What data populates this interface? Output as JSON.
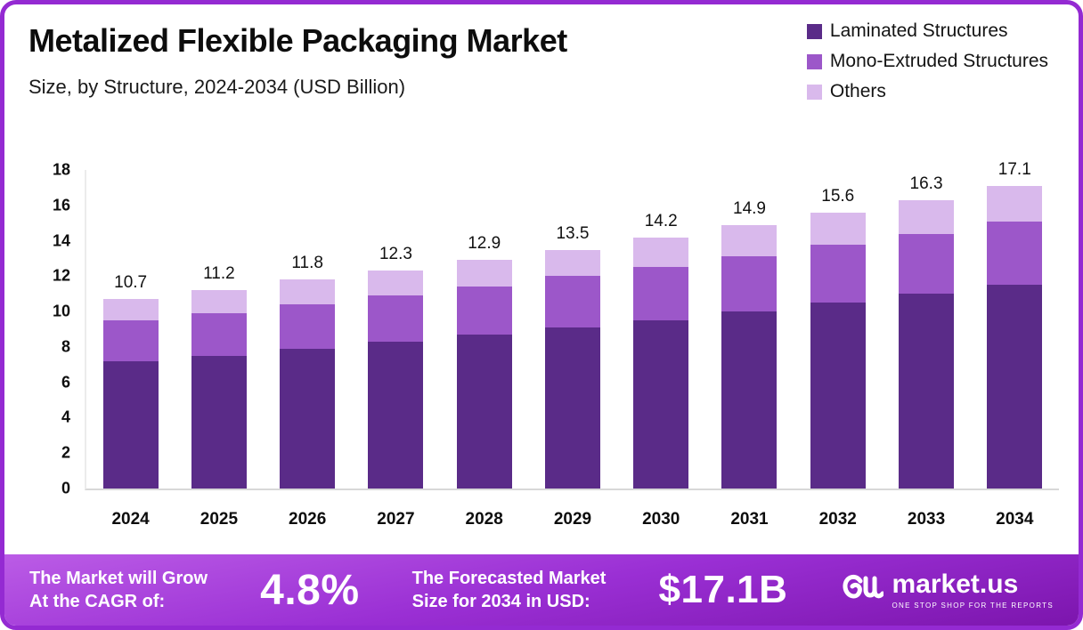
{
  "chart_data": {
    "type": "bar",
    "stacked": true,
    "title": "Metalized Flexible Packaging Market",
    "subtitle": "Size, by Structure, 2024-2034 (USD Billion)",
    "categories": [
      "2024",
      "2025",
      "2026",
      "2027",
      "2028",
      "2029",
      "2030",
      "2031",
      "2032",
      "2033",
      "2034"
    ],
    "series": [
      {
        "name": "Laminated Structures",
        "color": "#5a2b88",
        "values": [
          7.2,
          7.5,
          7.9,
          8.3,
          8.7,
          9.1,
          9.5,
          10.0,
          10.5,
          11.0,
          11.5
        ]
      },
      {
        "name": "Mono-Extruded Structures",
        "color": "#9c57c9",
        "values": [
          2.3,
          2.4,
          2.5,
          2.6,
          2.7,
          2.9,
          3.0,
          3.1,
          3.3,
          3.4,
          3.6
        ]
      },
      {
        "name": "Others",
        "color": "#d9b9ec",
        "values": [
          1.2,
          1.3,
          1.4,
          1.4,
          1.5,
          1.5,
          1.7,
          1.8,
          1.8,
          1.9,
          2.0
        ]
      }
    ],
    "totals": [
      10.7,
      11.2,
      11.8,
      12.3,
      12.9,
      13.5,
      14.2,
      14.9,
      15.6,
      16.3,
      17.1
    ],
    "ylim": [
      0,
      18
    ],
    "yticks": [
      0,
      2,
      4,
      6,
      8,
      10,
      12,
      14,
      16,
      18
    ],
    "xlabel": "",
    "ylabel": "",
    "grid": false,
    "legend_position": "top-right"
  },
  "banner": {
    "cagr_line1": "The Market will Grow",
    "cagr_line2": "At the CAGR of:",
    "cagr_value": "4.8%",
    "forecast_line1": "The Forecasted Market",
    "forecast_line2": "Size for 2034 in USD:",
    "forecast_value": "$17.1B",
    "logo_text": "market.us",
    "logo_tagline": "ONE STOP SHOP FOR THE REPORTS"
  },
  "colors": {
    "border": "#942ad2",
    "banner-top": "#bb5ce6",
    "banner-mid": "#9a2fd4",
    "banner-bottom": "#7c15ad",
    "axis": "#d8d8d8"
  }
}
